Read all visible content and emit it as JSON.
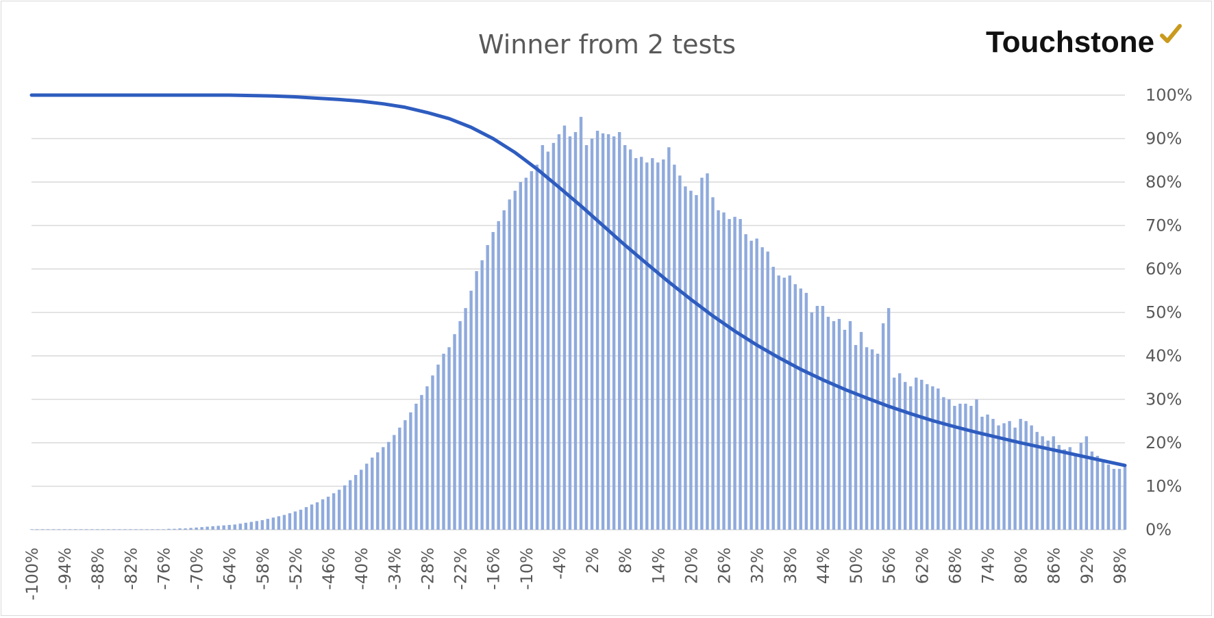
{
  "brand": {
    "name": "Touchstone",
    "icon": "checkmark-icon",
    "check_color": "#c99a1e"
  },
  "colors": {
    "bar": "#8faadc",
    "line": "#2e5cbf",
    "grid": "#d9d9d9",
    "text": "#595959"
  },
  "chart_data": {
    "type": "bar",
    "title": "Winner from 2 tests",
    "xlabel": "",
    "ylabel": "",
    "ylim": [
      0,
      100
    ],
    "y_ticks": [
      "0%",
      "10%",
      "20%",
      "30%",
      "40%",
      "50%",
      "60%",
      "70%",
      "80%",
      "90%",
      "100%"
    ],
    "x_tick_labels": [
      "-100%",
      "-94%",
      "-88%",
      "-82%",
      "-76%",
      "-70%",
      "-64%",
      "-58%",
      "-52%",
      "-46%",
      "-40%",
      "-34%",
      "-28%",
      "-22%",
      "-16%",
      "-10%",
      "-4%",
      "2%",
      "8%",
      "14%",
      "20%",
      "26%",
      "32%",
      "38%",
      "44%",
      "50%",
      "56%",
      "62%",
      "68%",
      "74%",
      "80%",
      "86%",
      "92%",
      "98%"
    ],
    "x_range": [
      -100,
      99
    ],
    "x_step": 1,
    "grid": true,
    "legend": "none",
    "series": [
      {
        "type": "bar",
        "values": [
          0.1,
          0.1,
          0.1,
          0.1,
          0.1,
          0.1,
          0.1,
          0.1,
          0.1,
          0.1,
          0.1,
          0.1,
          0.1,
          0.1,
          0.1,
          0.1,
          0.1,
          0.1,
          0.1,
          0.1,
          0.1,
          0.1,
          0.1,
          0.1,
          0.1,
          0.2,
          0.2,
          0.3,
          0.3,
          0.4,
          0.5,
          0.6,
          0.7,
          0.8,
          0.9,
          1.0,
          1.1,
          1.2,
          1.4,
          1.6,
          1.8,
          2.0,
          2.2,
          2.5,
          2.8,
          3.1,
          3.4,
          3.8,
          4.2,
          4.6,
          5.2,
          5.8,
          6.3,
          7.0,
          7.6,
          8.4,
          9.2,
          10.2,
          11.4,
          12.6,
          13.8,
          15.2,
          16.6,
          17.8,
          19.0,
          20.2,
          21.8,
          23.5,
          25.2,
          27.0,
          29.0,
          31.0,
          33.0,
          35.5,
          38.0,
          40.5,
          42.0,
          45.0,
          48.0,
          51.0,
          55.0,
          59.5,
          62.0,
          65.5,
          68.5,
          71.0,
          73.5,
          76.0,
          78.0,
          80.0,
          81.0,
          82.5,
          84.0,
          88.5,
          87.0,
          89.0,
          91.0,
          93.0,
          90.5,
          91.5,
          95.0,
          88.5,
          90.0,
          91.8,
          91.2,
          91.0,
          90.5,
          91.5,
          88.5,
          87.5,
          85.5,
          85.8,
          84.5,
          85.5,
          84.5,
          85.2,
          88.0,
          84.0,
          81.5,
          79.0,
          78.0,
          77.0,
          81.0,
          82.0,
          76.5,
          73.5,
          73.0,
          71.5,
          72.0,
          71.5,
          68.0,
          66.5,
          67.0,
          65.0,
          64.0,
          60.5,
          58.5,
          58.0,
          58.5,
          56.5,
          55.5,
          54.5,
          50.0,
          51.5,
          51.5,
          49.0,
          48.0,
          48.5,
          46.0,
          48.0,
          42.5,
          45.5,
          42.0,
          41.5,
          40.5,
          47.5,
          51.0,
          35.0,
          36.0,
          34.0,
          33.0,
          35.0,
          34.5,
          33.5,
          33.0,
          32.5,
          30.5,
          30.0,
          28.5,
          29.0,
          29.0,
          28.5,
          30.0,
          26.0,
          26.5,
          25.5,
          24.0,
          24.5,
          25.0,
          23.5,
          25.5,
          25.0,
          24.0,
          22.5,
          21.5,
          20.5,
          21.5,
          19.5,
          18.5,
          19.0,
          17.0,
          20.0,
          21.5,
          18.0,
          17.0,
          15.5,
          15.0,
          14.0,
          14.0,
          14.5
        ]
      },
      {
        "type": "line",
        "x": [
          -100,
          -90,
          -80,
          -70,
          -64,
          -60,
          -56,
          -52,
          -48,
          -44,
          -40,
          -36,
          -32,
          -28,
          -24,
          -20,
          -16,
          -12,
          -8,
          -4,
          0,
          4,
          8,
          12,
          16,
          20,
          24,
          28,
          32,
          36,
          40,
          44,
          48,
          52,
          56,
          60,
          64,
          68,
          72,
          76,
          80,
          84,
          88,
          92,
          96,
          99
        ],
        "values": [
          100,
          100,
          100,
          100,
          100,
          99.9,
          99.8,
          99.6,
          99.3,
          99.0,
          98.6,
          98.0,
          97.2,
          96.0,
          94.6,
          92.6,
          90.0,
          86.8,
          83.0,
          78.8,
          74.5,
          70.0,
          65.5,
          61.2,
          57.0,
          53.0,
          49.2,
          45.7,
          42.5,
          39.6,
          36.9,
          34.5,
          32.3,
          30.3,
          28.4,
          26.7,
          25.1,
          23.7,
          22.4,
          21.2,
          20.0,
          18.9,
          17.8,
          16.7,
          15.6,
          14.8
        ]
      }
    ]
  }
}
